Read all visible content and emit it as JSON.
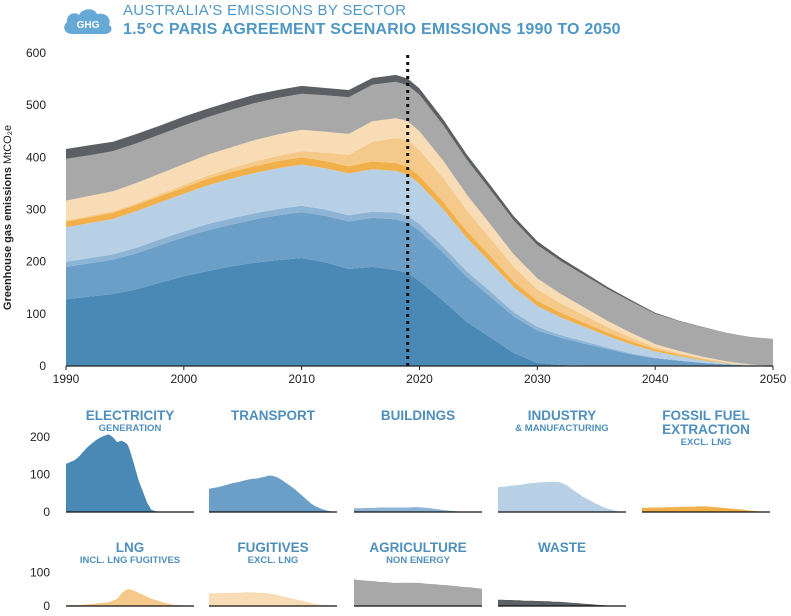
{
  "header": {
    "badge": "GHG",
    "title": "AUSTRALIA'S EMISSIONS BY SECTOR",
    "subtitle": "1.5°C PARIS AGREEMENT SCENARIO EMISSIONS 1990 TO 2050"
  },
  "chart_data": [
    {
      "type": "area",
      "stacked": true,
      "ylabel": "Greenhouse gas emissions",
      "ylabel_unit": "MtCO₂e",
      "xlim": [
        1990,
        2050
      ],
      "ylim": [
        0,
        600
      ],
      "x_ticks": [
        1990,
        2000,
        2010,
        2020,
        2030,
        2040,
        2050
      ],
      "y_ticks": [
        0,
        100,
        200,
        300,
        400,
        500,
        600
      ],
      "marker_year": 2019,
      "marker_style": "dotted",
      "grid": false,
      "legend": "none",
      "x": [
        1990,
        1992,
        1994,
        1996,
        1998,
        2000,
        2002,
        2004,
        2006,
        2008,
        2010,
        2012,
        2014,
        2016,
        2018,
        2019,
        2020,
        2022,
        2024,
        2026,
        2028,
        2030,
        2032,
        2034,
        2036,
        2038,
        2040,
        2042,
        2044,
        2046,
        2048,
        2050
      ],
      "series": [
        {
          "key": "electricity",
          "color": "#4a88b5",
          "values": [
            128,
            133,
            138,
            147,
            160,
            172,
            182,
            191,
            198,
            203,
            207,
            199,
            186,
            190,
            184,
            178,
            163,
            125,
            85,
            55,
            25,
            6,
            2,
            1,
            0,
            0,
            0,
            0,
            0,
            0,
            0,
            0
          ]
        },
        {
          "key": "transport",
          "color": "#6b9fc8",
          "values": [
            62,
            64,
            66,
            69,
            72,
            75,
            78,
            80,
            83,
            86,
            88,
            89,
            91,
            94,
            97,
            97,
            96,
            92,
            86,
            78,
            70,
            62,
            52,
            42,
            32,
            22,
            15,
            10,
            6,
            3,
            1,
            0
          ]
        },
        {
          "key": "buildings",
          "color": "#8db3d5",
          "values": [
            10,
            10,
            10,
            11,
            11,
            11,
            12,
            12,
            12,
            12,
            12,
            12,
            12,
            12,
            13,
            13,
            13,
            12,
            11,
            10,
            8,
            7,
            5,
            4,
            3,
            2,
            1,
            1,
            0,
            0,
            0,
            0
          ]
        },
        {
          "key": "industry",
          "color": "#b8d0e5",
          "values": [
            66,
            67,
            68,
            70,
            71,
            72,
            74,
            76,
            77,
            78,
            79,
            79,
            80,
            81,
            80,
            79,
            77,
            72,
            64,
            56,
            48,
            40,
            34,
            28,
            22,
            17,
            12,
            8,
            5,
            2,
            1,
            0
          ]
        },
        {
          "key": "fossil_fuel_extraction",
          "color": "#f2b04a",
          "values": [
            11,
            11,
            12,
            12,
            12,
            12,
            13,
            13,
            13,
            14,
            14,
            14,
            14,
            15,
            15,
            15,
            15,
            14,
            13,
            12,
            11,
            10,
            9,
            8,
            7,
            6,
            4,
            3,
            2,
            1,
            0,
            0
          ]
        },
        {
          "key": "lng",
          "color": "#f5c98a",
          "values": [
            2,
            3,
            3,
            3,
            4,
            5,
            6,
            7,
            9,
            10,
            12,
            16,
            22,
            38,
            48,
            50,
            50,
            46,
            40,
            34,
            28,
            22,
            18,
            14,
            10,
            7,
            4,
            3,
            2,
            1,
            0,
            0
          ]
        },
        {
          "key": "fugitives",
          "color": "#f8dcb5",
          "values": [
            38,
            38,
            38,
            39,
            39,
            40,
            40,
            40,
            41,
            41,
            41,
            40,
            40,
            39,
            38,
            37,
            36,
            33,
            30,
            27,
            24,
            21,
            18,
            15,
            12,
            9,
            6,
            4,
            3,
            2,
            1,
            0
          ]
        },
        {
          "key": "agriculture",
          "color": "#a7a8a7",
          "values": [
            80,
            78,
            77,
            76,
            75,
            74,
            72,
            72,
            71,
            70,
            69,
            70,
            70,
            70,
            70,
            69,
            70,
            68,
            67,
            66,
            65,
            64,
            63,
            62,
            61,
            60,
            58,
            57,
            56,
            55,
            53,
            52
          ]
        },
        {
          "key": "waste",
          "color": "#5c5f63",
          "values": [
            19,
            19,
            18,
            18,
            17,
            17,
            16,
            16,
            16,
            15,
            15,
            14,
            14,
            13,
            13,
            13,
            12,
            11,
            10,
            9,
            8,
            7,
            6,
            5,
            4,
            3,
            2,
            1,
            1,
            0,
            0,
            0
          ]
        }
      ]
    },
    {
      "type": "area",
      "small_multiples": true,
      "xlim": [
        1990,
        2050
      ],
      "rows": [
        {
          "y_ticks": [
            0,
            100,
            200
          ],
          "ylim": [
            0,
            220
          ],
          "panels": [
            {
              "key": "electricity",
              "title": "ELECTRICITY",
              "subtitle": "GENERATION"
            },
            {
              "key": "transport",
              "title": "TRANSPORT",
              "subtitle": ""
            },
            {
              "key": "buildings",
              "title": "BUILDINGS",
              "subtitle": ""
            },
            {
              "key": "industry",
              "title": "INDUSTRY",
              "subtitle": "& MANUFACTURING"
            },
            {
              "key": "fossil_fuel_extraction",
              "title": "FOSSIL FUEL EXTRACTION",
              "subtitle": "EXCL. LNG"
            }
          ]
        },
        {
          "y_ticks": [
            0,
            100
          ],
          "ylim": [
            0,
            130
          ],
          "panels": [
            {
              "key": "lng",
              "title": "LNG",
              "subtitle": "INCL. LNG FUGITIVES"
            },
            {
              "key": "fugitives",
              "title": "FUGITIVES",
              "subtitle": "EXCL. LNG"
            },
            {
              "key": "agriculture",
              "title": "AGRICULTURE",
              "subtitle": "NON ENERGY"
            },
            {
              "key": "waste",
              "title": "WASTE",
              "subtitle": ""
            }
          ]
        }
      ]
    }
  ]
}
